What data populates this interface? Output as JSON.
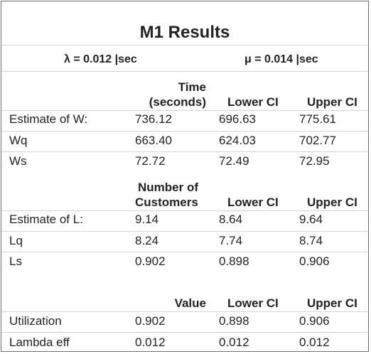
{
  "title": "M1 Results",
  "params": {
    "lambda": "λ = 0.012 |sec",
    "mu": "μ =  0.014 |sec"
  },
  "time_section": {
    "header_line1": "Time",
    "header_line2": "(seconds)",
    "lower_ci": "Lower CI",
    "upper_ci": "Upper CI",
    "rows": [
      {
        "label": "Estimate of W:",
        "value": "736.12",
        "lower": "696.63",
        "upper": "775.61"
      },
      {
        "label": "Wq",
        "value": "663.40",
        "lower": "624.03",
        "upper": "702.77"
      },
      {
        "label": "Ws",
        "value": "72.72",
        "lower": "72.49",
        "upper": "72.95"
      }
    ]
  },
  "customers_section": {
    "header_line1": "Number of",
    "header_line2": "Customers",
    "lower_ci": "Lower CI",
    "upper_ci": "Upper CI",
    "rows": [
      {
        "label": "Estimate of L:",
        "value": "9.14",
        "lower": "8.64",
        "upper": "9.64"
      },
      {
        "label": "Lq",
        "value": "8.24",
        "lower": "7.74",
        "upper": "8.74"
      },
      {
        "label": "Ls",
        "value": "0.902",
        "lower": "0.898",
        "upper": "0.906"
      }
    ]
  },
  "value_section": {
    "header": "Value",
    "lower_ci": "Lower CI",
    "upper_ci": "Upper CI",
    "rows": [
      {
        "label": "Utilization",
        "value": "0.902",
        "lower": "0.898",
        "upper": "0.906"
      },
      {
        "label": "Lambda eff",
        "value": "0.012",
        "lower": "0.012",
        "upper": "0.012"
      }
    ]
  }
}
